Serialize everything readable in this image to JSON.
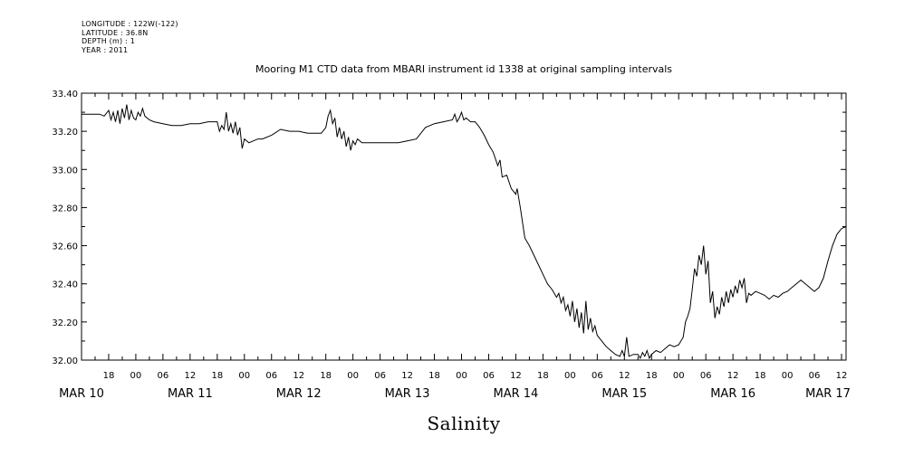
{
  "header": {
    "longitude": "LONGITUDE : 122W(-122)",
    "latitude": "LATITUDE : 36.8N",
    "depth": "DEPTH (m) : 1",
    "year": "YEAR : 2011"
  },
  "chart_data": {
    "type": "line",
    "title": "Mooring M1 CTD data from MBARI instrument id 1338 at original sampling intervals",
    "xlabel": "Salinity",
    "ylabel": "",
    "x_units": "hours since MAR 10 00:00, 2011",
    "xlim": [
      12,
      181
    ],
    "ylim": [
      32.0,
      33.4
    ],
    "yticks": [
      32.0,
      32.2,
      32.4,
      32.6,
      32.8,
      33.0,
      33.2,
      33.4
    ],
    "ytick_labels": [
      "32.00",
      "32.20",
      "32.40",
      "32.60",
      "32.80",
      "33.00",
      "33.20",
      "33.40"
    ],
    "xticks": [
      18,
      24,
      30,
      36,
      42,
      48,
      54,
      60,
      66,
      72,
      78,
      84,
      90,
      96,
      102,
      108,
      114,
      120,
      126,
      132,
      138,
      144,
      150,
      156,
      162,
      168,
      174,
      180
    ],
    "xtick_labels": [
      "18",
      "00",
      "06",
      "12",
      "18",
      "00",
      "06",
      "12",
      "18",
      "00",
      "06",
      "12",
      "18",
      "00",
      "06",
      "12",
      "18",
      "00",
      "06",
      "12",
      "18",
      "00",
      "06",
      "12",
      "18",
      "00",
      "06",
      "12"
    ],
    "day_labels": [
      {
        "hour": 12,
        "label": "MAR 10"
      },
      {
        "hour": 36,
        "label": "MAR 11"
      },
      {
        "hour": 60,
        "label": "MAR 12"
      },
      {
        "hour": 84,
        "label": "MAR 13"
      },
      {
        "hour": 108,
        "label": "MAR 14"
      },
      {
        "hour": 132,
        "label": "MAR 15"
      },
      {
        "hour": 156,
        "label": "MAR 16"
      },
      {
        "hour": 177,
        "label": "MAR 17"
      }
    ],
    "series": [
      {
        "values": [
          [
            12,
            33.29
          ],
          [
            14,
            33.29
          ],
          [
            16,
            33.29
          ],
          [
            17,
            33.28
          ],
          [
            18,
            33.31
          ],
          [
            18.5,
            33.26
          ],
          [
            19,
            33.3
          ],
          [
            19.5,
            33.25
          ],
          [
            20,
            33.31
          ],
          [
            20.5,
            33.24
          ],
          [
            21,
            33.32
          ],
          [
            21.5,
            33.27
          ],
          [
            22,
            33.34
          ],
          [
            22.5,
            33.26
          ],
          [
            23,
            33.31
          ],
          [
            23.5,
            33.27
          ],
          [
            24,
            33.26
          ],
          [
            24.5,
            33.3
          ],
          [
            25,
            33.28
          ],
          [
            25.5,
            33.32
          ],
          [
            26,
            33.28
          ],
          [
            27,
            33.26
          ],
          [
            28,
            33.25
          ],
          [
            30,
            33.24
          ],
          [
            32,
            33.23
          ],
          [
            34,
            33.23
          ],
          [
            36,
            33.24
          ],
          [
            38,
            33.24
          ],
          [
            40,
            33.25
          ],
          [
            42,
            33.25
          ],
          [
            42.5,
            33.2
          ],
          [
            43,
            33.23
          ],
          [
            43.5,
            33.21
          ],
          [
            44,
            33.3
          ],
          [
            44.5,
            33.2
          ],
          [
            45,
            33.24
          ],
          [
            45.5,
            33.19
          ],
          [
            46,
            33.25
          ],
          [
            46.5,
            33.18
          ],
          [
            47,
            33.22
          ],
          [
            47.5,
            33.11
          ],
          [
            48,
            33.16
          ],
          [
            49,
            33.14
          ],
          [
            50,
            33.15
          ],
          [
            51,
            33.16
          ],
          [
            52,
            33.16
          ],
          [
            54,
            33.18
          ],
          [
            56,
            33.21
          ],
          [
            58,
            33.2
          ],
          [
            60,
            33.2
          ],
          [
            62,
            33.19
          ],
          [
            64,
            33.19
          ],
          [
            65,
            33.19
          ],
          [
            66,
            33.22
          ],
          [
            66.5,
            33.28
          ],
          [
            67,
            33.31
          ],
          [
            67.5,
            33.24
          ],
          [
            68,
            33.27
          ],
          [
            68.5,
            33.17
          ],
          [
            69,
            33.22
          ],
          [
            69.5,
            33.16
          ],
          [
            70,
            33.2
          ],
          [
            70.5,
            33.12
          ],
          [
            71,
            33.17
          ],
          [
            71.5,
            33.1
          ],
          [
            72,
            33.15
          ],
          [
            72.5,
            33.13
          ],
          [
            73,
            33.16
          ],
          [
            74,
            33.14
          ],
          [
            76,
            33.14
          ],
          [
            78,
            33.14
          ],
          [
            80,
            33.14
          ],
          [
            82,
            33.14
          ],
          [
            84,
            33.15
          ],
          [
            86,
            33.16
          ],
          [
            87,
            33.19
          ],
          [
            88,
            33.22
          ],
          [
            90,
            33.24
          ],
          [
            92,
            33.25
          ],
          [
            94,
            33.26
          ],
          [
            94.5,
            33.29
          ],
          [
            95,
            33.25
          ],
          [
            95.5,
            33.27
          ],
          [
            96,
            33.3
          ],
          [
            96.5,
            33.26
          ],
          [
            97,
            33.27
          ],
          [
            98,
            33.25
          ],
          [
            99,
            33.25
          ],
          [
            100,
            33.22
          ],
          [
            101,
            33.18
          ],
          [
            102,
            33.13
          ],
          [
            103,
            33.09
          ],
          [
            104,
            33.02
          ],
          [
            104.5,
            33.05
          ],
          [
            105,
            32.96
          ],
          [
            106,
            32.97
          ],
          [
            107,
            32.9
          ],
          [
            108,
            32.87
          ],
          [
            108.3,
            32.9
          ],
          [
            109,
            32.8
          ],
          [
            109.5,
            32.72
          ],
          [
            110,
            32.64
          ],
          [
            111,
            32.6
          ],
          [
            112,
            32.55
          ],
          [
            113,
            32.5
          ],
          [
            114,
            32.45
          ],
          [
            115,
            32.4
          ],
          [
            116,
            32.37
          ],
          [
            117,
            32.33
          ],
          [
            117.5,
            32.35
          ],
          [
            118,
            32.3
          ],
          [
            118.5,
            32.33
          ],
          [
            119,
            32.26
          ],
          [
            119.5,
            32.29
          ],
          [
            120,
            32.23
          ],
          [
            120.5,
            32.31
          ],
          [
            121,
            32.2
          ],
          [
            121.5,
            32.27
          ],
          [
            122,
            32.17
          ],
          [
            122.5,
            32.25
          ],
          [
            123,
            32.14
          ],
          [
            123.5,
            32.31
          ],
          [
            124,
            32.16
          ],
          [
            124.5,
            32.22
          ],
          [
            125,
            32.15
          ],
          [
            125.5,
            32.18
          ],
          [
            126,
            32.13
          ],
          [
            127,
            32.1
          ],
          [
            128,
            32.07
          ],
          [
            129,
            32.05
          ],
          [
            130,
            32.03
          ],
          [
            131,
            32.02
          ],
          [
            131.5,
            32.05
          ],
          [
            132,
            32.02
          ],
          [
            132.5,
            32.12
          ],
          [
            133,
            32.02
          ],
          [
            134,
            32.03
          ],
          [
            135,
            32.03
          ],
          [
            135.5,
            32.01
          ],
          [
            136,
            32.04
          ],
          [
            136.5,
            32.02
          ],
          [
            137,
            32.05
          ],
          [
            137.5,
            32.01
          ],
          [
            138,
            32.03
          ],
          [
            139,
            32.05
          ],
          [
            140,
            32.04
          ],
          [
            141,
            32.06
          ],
          [
            142,
            32.08
          ],
          [
            143,
            32.07
          ],
          [
            144,
            32.08
          ],
          [
            145,
            32.12
          ],
          [
            145.5,
            32.2
          ],
          [
            146,
            32.23
          ],
          [
            146.5,
            32.27
          ],
          [
            147,
            32.37
          ],
          [
            147.5,
            32.48
          ],
          [
            148,
            32.44
          ],
          [
            148.5,
            32.55
          ],
          [
            149,
            32.5
          ],
          [
            149.5,
            32.6
          ],
          [
            150,
            32.45
          ],
          [
            150.5,
            32.52
          ],
          [
            151,
            32.3
          ],
          [
            151.5,
            32.36
          ],
          [
            152,
            32.22
          ],
          [
            152.5,
            32.28
          ],
          [
            153,
            32.24
          ],
          [
            153.5,
            32.33
          ],
          [
            154,
            32.28
          ],
          [
            154.5,
            32.36
          ],
          [
            155,
            32.3
          ],
          [
            155.5,
            32.37
          ],
          [
            156,
            32.33
          ],
          [
            156.5,
            32.39
          ],
          [
            157,
            32.35
          ],
          [
            157.5,
            32.42
          ],
          [
            158,
            32.38
          ],
          [
            158.5,
            32.43
          ],
          [
            159,
            32.3
          ],
          [
            159.5,
            32.35
          ],
          [
            160,
            32.34
          ],
          [
            161,
            32.36
          ],
          [
            162,
            32.35
          ],
          [
            163,
            32.34
          ],
          [
            164,
            32.32
          ],
          [
            165,
            32.34
          ],
          [
            166,
            32.33
          ],
          [
            167,
            32.35
          ],
          [
            168,
            32.36
          ],
          [
            169,
            32.38
          ],
          [
            170,
            32.4
          ],
          [
            171,
            32.42
          ],
          [
            172,
            32.4
          ],
          [
            173,
            32.38
          ],
          [
            174,
            32.36
          ],
          [
            175,
            32.38
          ],
          [
            176,
            32.43
          ],
          [
            177,
            32.52
          ],
          [
            178,
            32.6
          ],
          [
            179,
            32.66
          ],
          [
            180,
            32.69
          ],
          [
            181,
            32.7
          ]
        ]
      }
    ]
  }
}
